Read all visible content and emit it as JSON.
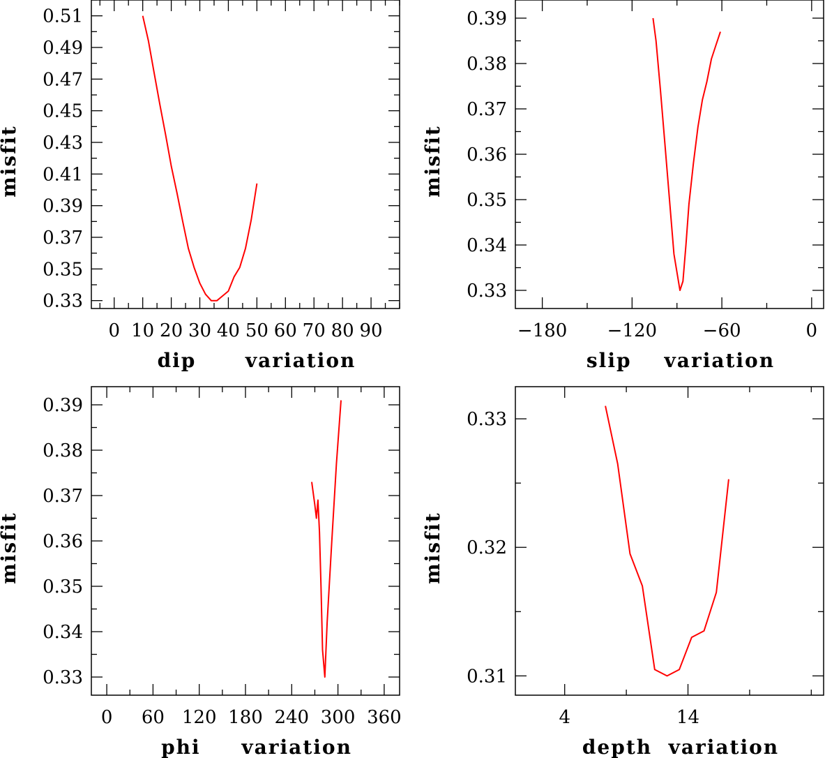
{
  "chart_data": [
    {
      "type": "line",
      "xlabel": "dip      variation",
      "ylabel": "misfit",
      "xlim": [
        -8,
        100
      ],
      "ylim": [
        0.325,
        0.52
      ],
      "xticks": [
        0,
        10,
        20,
        30,
        40,
        50,
        60,
        70,
        80,
        90
      ],
      "xtick_labels": [
        "0",
        "10",
        "20",
        "30",
        "40",
        "50",
        "60",
        "70",
        "80",
        "90"
      ],
      "yticks": [
        0.33,
        0.35,
        0.37,
        0.39,
        0.41,
        0.43,
        0.45,
        0.47,
        0.49,
        0.51
      ],
      "ytick_labels": [
        "0.33",
        "0.35",
        "0.37",
        "0.39",
        "0.41",
        "0.43",
        "0.45",
        "0.47",
        "0.49",
        "0.51"
      ],
      "series": [
        {
          "name": "dip",
          "color": "#ff0000",
          "x": [
            10,
            12,
            14,
            16,
            18,
            20,
            22,
            24,
            26,
            28,
            30,
            32,
            34,
            36,
            38,
            40,
            42,
            44,
            46,
            48,
            50
          ],
          "y": [
            0.51,
            0.494,
            0.474,
            0.454,
            0.435,
            0.415,
            0.398,
            0.38,
            0.363,
            0.351,
            0.341,
            0.334,
            0.33,
            0.33,
            0.333,
            0.336,
            0.345,
            0.351,
            0.363,
            0.381,
            0.404
          ]
        }
      ]
    },
    {
      "type": "line",
      "xlabel": "slip    variation",
      "ylabel": "misfit",
      "xlim": [
        -198,
        8
      ],
      "ylim": [
        0.326,
        0.394
      ],
      "xticks": [
        -180,
        -120,
        -60,
        0
      ],
      "xtick_labels": [
        "−180",
        "−120",
        "−60",
        "0"
      ],
      "yticks": [
        0.33,
        0.34,
        0.35,
        0.36,
        0.37,
        0.38,
        0.39
      ],
      "ytick_labels": [
        "0.33",
        "0.34",
        "0.35",
        "0.36",
        "0.37",
        "0.38",
        "0.39"
      ],
      "series": [
        {
          "name": "slip",
          "color": "#ff0000",
          "x": [
            -106,
            -104,
            -101,
            -98,
            -95,
            -92,
            -90,
            -88,
            -86,
            -84,
            -82,
            -79,
            -76,
            -73,
            -70,
            -67,
            -64,
            -61
          ],
          "y": [
            0.39,
            0.385,
            0.374,
            0.362,
            0.35,
            0.338,
            0.334,
            0.33,
            0.332,
            0.34,
            0.349,
            0.358,
            0.366,
            0.372,
            0.376,
            0.381,
            0.384,
            0.387
          ]
        }
      ]
    },
    {
      "type": "line",
      "xlabel": "phi     variation",
      "ylabel": "misfit",
      "xlim": [
        -20,
        380
      ],
      "ylim": [
        0.326,
        0.394
      ],
      "xticks": [
        0,
        60,
        120,
        180,
        240,
        300,
        360
      ],
      "xtick_labels": [
        "0",
        "60",
        "120",
        "180",
        "240",
        "300",
        "360"
      ],
      "yticks": [
        0.33,
        0.34,
        0.35,
        0.36,
        0.37,
        0.38,
        0.39
      ],
      "ytick_labels": [
        "0.33",
        "0.34",
        "0.35",
        "0.36",
        "0.37",
        "0.38",
        "0.39"
      ],
      "series": [
        {
          "name": "phi",
          "color": "#ff0000",
          "x": [
            266,
            270,
            272,
            274,
            276,
            278,
            280,
            283,
            286,
            292,
            298,
            304
          ],
          "y": [
            0.373,
            0.368,
            0.365,
            0.369,
            0.362,
            0.35,
            0.336,
            0.33,
            0.342,
            0.36,
            0.377,
            0.391
          ]
        }
      ]
    },
    {
      "type": "line",
      "xlabel": "depth  variation",
      "ylabel": "misfit",
      "xlim": [
        0,
        25
      ],
      "ylim": [
        0.3085,
        0.3325
      ],
      "xticks": [
        4,
        14
      ],
      "xtick_labels": [
        "4",
        "14"
      ],
      "yticks": [
        0.31,
        0.32,
        0.33
      ],
      "ytick_labels": [
        "0.31",
        "0.32",
        "0.33"
      ],
      "series": [
        {
          "name": "depth",
          "color": "#ff0000",
          "x": [
            7.3,
            8.3,
            9.3,
            10.3,
            11.3,
            12.3,
            13.3,
            14.3,
            15.3,
            16.3,
            17.3
          ],
          "y": [
            0.331,
            0.3265,
            0.3195,
            0.317,
            0.3105,
            0.31,
            0.3105,
            0.313,
            0.3135,
            0.3165,
            0.3253
          ]
        }
      ]
    }
  ]
}
